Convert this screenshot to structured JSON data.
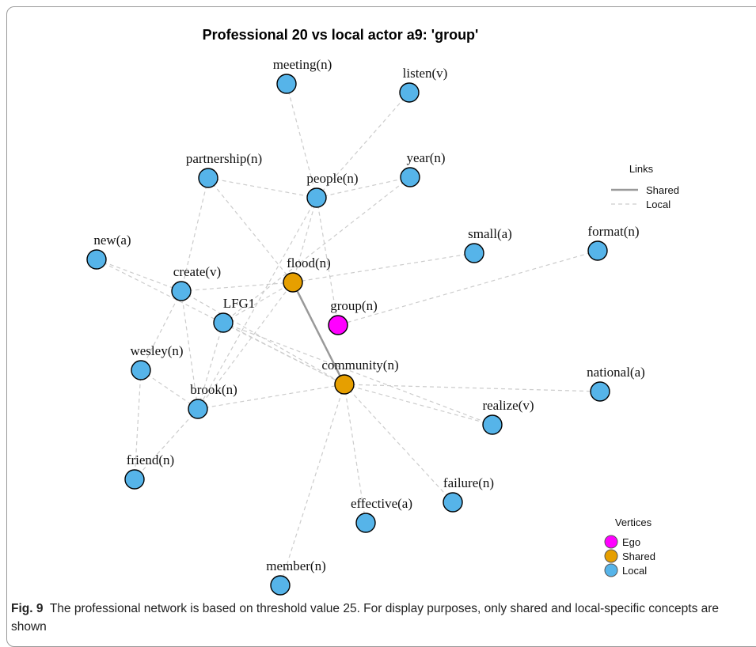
{
  "title": "Professional 20 vs local actor a9: 'group'",
  "colors": {
    "Ego": "#ff00ff",
    "Shared": "#e69f00",
    "Local": "#56b4e9",
    "shared_link": "#999999",
    "local_link": "#cccccc"
  },
  "nodes": [
    {
      "label": "meeting(n)",
      "type": "Local"
    },
    {
      "label": "listen(v)",
      "type": "Local"
    },
    {
      "label": "partnership(n)",
      "type": "Local"
    },
    {
      "label": "people(n)",
      "type": "Local"
    },
    {
      "label": "year(n)",
      "type": "Local"
    },
    {
      "label": "new(a)",
      "type": "Local"
    },
    {
      "label": "small(a)",
      "type": "Local"
    },
    {
      "label": "format(n)",
      "type": "Local"
    },
    {
      "label": "create(v)",
      "type": "Local"
    },
    {
      "label": "flood(n)",
      "type": "Shared"
    },
    {
      "label": "group(n)",
      "type": "Ego"
    },
    {
      "label": "LFG1",
      "type": "Local"
    },
    {
      "label": "wesley(n)",
      "type": "Local"
    },
    {
      "label": "community(n)",
      "type": "Shared"
    },
    {
      "label": "national(a)",
      "type": "Local"
    },
    {
      "label": "brook(n)",
      "type": "Local"
    },
    {
      "label": "realize(v)",
      "type": "Local"
    },
    {
      "label": "friend(n)",
      "type": "Local"
    },
    {
      "label": "failure(n)",
      "type": "Local"
    },
    {
      "label": "effective(a)",
      "type": "Local"
    },
    {
      "label": "member(n)",
      "type": "Local"
    }
  ],
  "edges": [
    {
      "from": "flood(n)",
      "to": "community(n)",
      "type": "Shared"
    },
    {
      "from": "meeting(n)",
      "to": "people(n)",
      "type": "Local"
    },
    {
      "from": "listen(v)",
      "to": "people(n)",
      "type": "Local"
    },
    {
      "from": "partnership(n)",
      "to": "people(n)",
      "type": "Local"
    },
    {
      "from": "partnership(n)",
      "to": "create(v)",
      "type": "Local"
    },
    {
      "from": "partnership(n)",
      "to": "flood(n)",
      "type": "Local"
    },
    {
      "from": "people(n)",
      "to": "year(n)",
      "type": "Local"
    },
    {
      "from": "people(n)",
      "to": "flood(n)",
      "type": "Local"
    },
    {
      "from": "people(n)",
      "to": "brook(n)",
      "type": "Local"
    },
    {
      "from": "people(n)",
      "to": "group(n)",
      "type": "Local"
    },
    {
      "from": "year(n)",
      "to": "LFG1",
      "type": "Local"
    },
    {
      "from": "new(a)",
      "to": "create(v)",
      "type": "Local"
    },
    {
      "from": "new(a)",
      "to": "community(n)",
      "type": "Local"
    },
    {
      "from": "create(v)",
      "to": "flood(n)",
      "type": "Local"
    },
    {
      "from": "create(v)",
      "to": "brook(n)",
      "type": "Local"
    },
    {
      "from": "create(v)",
      "to": "wesley(n)",
      "type": "Local"
    },
    {
      "from": "create(v)",
      "to": "community(n)",
      "type": "Local"
    },
    {
      "from": "LFG1",
      "to": "community(n)",
      "type": "Local"
    },
    {
      "from": "LFG1",
      "to": "brook(n)",
      "type": "Local"
    },
    {
      "from": "LFG1",
      "to": "flood(n)",
      "type": "Local"
    },
    {
      "from": "LFG1",
      "to": "realize(v)",
      "type": "Local"
    },
    {
      "from": "wesley(n)",
      "to": "brook(n)",
      "type": "Local"
    },
    {
      "from": "wesley(n)",
      "to": "friend(n)",
      "type": "Local"
    },
    {
      "from": "brook(n)",
      "to": "friend(n)",
      "type": "Local"
    },
    {
      "from": "brook(n)",
      "to": "flood(n)",
      "type": "Local"
    },
    {
      "from": "brook(n)",
      "to": "community(n)",
      "type": "Local"
    },
    {
      "from": "small(a)",
      "to": "flood(n)",
      "type": "Local"
    },
    {
      "from": "format(n)",
      "to": "group(n)",
      "type": "Local"
    },
    {
      "from": "community(n)",
      "to": "national(a)",
      "type": "Local"
    },
    {
      "from": "community(n)",
      "to": "realize(v)",
      "type": "Local"
    },
    {
      "from": "community(n)",
      "to": "failure(n)",
      "type": "Local"
    },
    {
      "from": "community(n)",
      "to": "effective(a)",
      "type": "Local"
    },
    {
      "from": "community(n)",
      "to": "member(n)",
      "type": "Local"
    }
  ],
  "links_legend": {
    "title": "Links",
    "items": [
      "Shared",
      "Local"
    ]
  },
  "vertices_legend": {
    "title": "Vertices",
    "items": [
      "Ego",
      "Shared",
      "Local"
    ]
  },
  "caption": {
    "label": "Fig. 9",
    "text": "The professional network is based on threshold value 25. For display purposes, only shared and local-specific concepts are shown"
  }
}
